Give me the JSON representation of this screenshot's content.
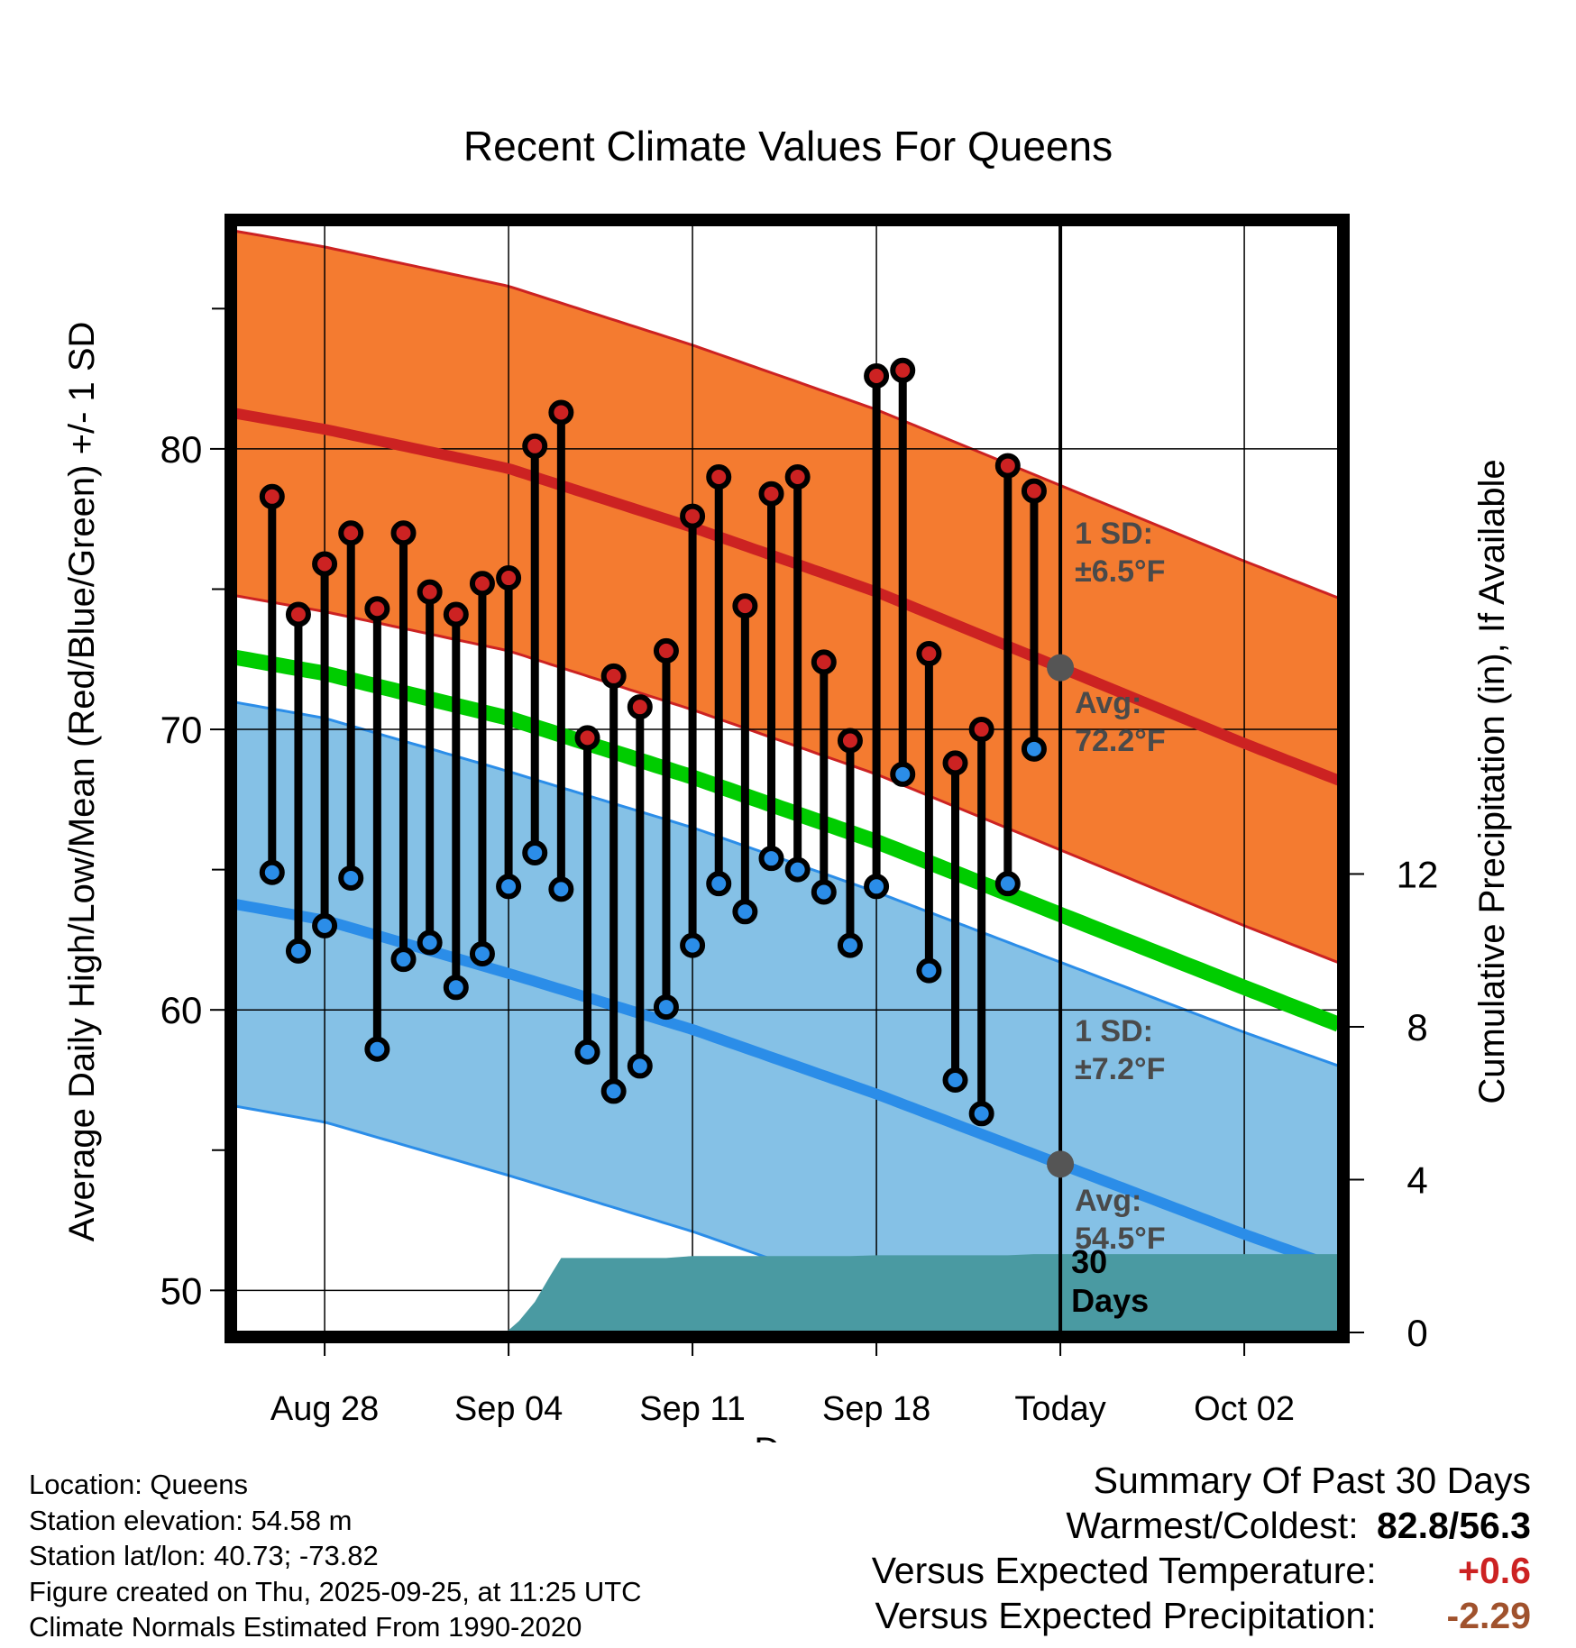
{
  "chart_data": {
    "type": "line",
    "title": "Recent Climate Values For Queens",
    "xlabel": "Day",
    "ylabel": "Average Daily High/Low/Mean (Red/Blue/Green) +/- 1 SD",
    "y2label": "Cumulative Precipitation (in), If Available",
    "x_range": [
      -3.4,
      38.6
    ],
    "ylim": [
      48.5,
      88.0
    ],
    "y2lim": [
      0,
      29
    ],
    "x_ticks": [
      {
        "x": 0,
        "label": "Aug 28"
      },
      {
        "x": 7,
        "label": "Sep 04"
      },
      {
        "x": 14,
        "label": "Sep 11"
      },
      {
        "x": 21,
        "label": "Sep 18"
      },
      {
        "x": 28,
        "label": "Today"
      },
      {
        "x": 35,
        "label": "Oct 02"
      }
    ],
    "y_ticks": [
      50,
      60,
      70,
      80
    ],
    "y_minor_ticks": [
      55,
      65,
      75,
      85
    ],
    "y2_ticks": [
      0,
      4,
      8,
      12
    ],
    "today_x": 28,
    "normals": {
      "x": [
        -3,
        0,
        7,
        14,
        21,
        28,
        35,
        38
      ],
      "high_mean": [
        81.2,
        80.7,
        79.3,
        77.2,
        74.9,
        72.2,
        69.5,
        68.4
      ],
      "high_sd": 6.5,
      "low_mean": [
        63.7,
        63.2,
        61.3,
        59.3,
        57.0,
        54.5,
        52.0,
        51.0
      ],
      "low_sd": 7.2,
      "mean": [
        72.5,
        72.0,
        70.4,
        68.3,
        66.0,
        63.4,
        60.8,
        59.7
      ]
    },
    "series": [
      {
        "name": "Daily High",
        "color": "#cc2222",
        "x": [
          -2,
          -1,
          0,
          1,
          2,
          3,
          4,
          5,
          6,
          7,
          8,
          9,
          10,
          11,
          12,
          13,
          14,
          15,
          16,
          17,
          18,
          19,
          20,
          21,
          22,
          23,
          24,
          25,
          26,
          27
        ],
        "values": [
          78.3,
          74.1,
          75.9,
          77.0,
          74.3,
          77.0,
          74.9,
          74.1,
          75.2,
          75.4,
          80.1,
          81.3,
          69.7,
          71.9,
          70.8,
          72.8,
          77.6,
          79.0,
          74.4,
          78.4,
          79.0,
          72.4,
          69.6,
          82.6,
          82.8,
          72.7,
          68.8,
          70.0,
          79.4,
          78.5
        ]
      },
      {
        "name": "Daily Low",
        "color": "#2b8de8",
        "x": [
          -2,
          -1,
          0,
          1,
          2,
          3,
          4,
          5,
          6,
          7,
          8,
          9,
          10,
          11,
          12,
          13,
          14,
          15,
          16,
          17,
          18,
          19,
          20,
          21,
          22,
          23,
          24,
          25,
          26,
          27
        ],
        "values": [
          64.9,
          62.1,
          63.0,
          64.7,
          58.6,
          61.8,
          62.4,
          60.8,
          62.0,
          64.4,
          65.6,
          64.3,
          58.5,
          57.1,
          58.0,
          60.1,
          62.3,
          64.5,
          63.5,
          65.4,
          65.0,
          64.2,
          62.3,
          64.4,
          68.4,
          61.4,
          57.5,
          56.3,
          64.5,
          69.3
        ]
      }
    ],
    "precip_cumulative": {
      "x": [
        6.9,
        7.4,
        8.0,
        8.6,
        9.0,
        10.0,
        13.0,
        14.0,
        20.0,
        21.0,
        26.0,
        27.0,
        38.6
      ],
      "values": [
        0.0,
        0.3,
        0.8,
        1.5,
        1.95,
        1.95,
        1.95,
        2.0,
        2.0,
        2.02,
        2.02,
        2.05,
        2.05
      ]
    },
    "annotations": {
      "high_sd": "1 SD:",
      "high_sd_value": "±6.5°F",
      "high_avg": "Avg:",
      "high_avg_value": "72.2°F",
      "low_sd": "1 SD:",
      "low_sd_value": "±7.2°F",
      "low_avg": "Avg:",
      "low_avg_value": "54.5°F",
      "days_line1": "30",
      "days_line2": "Days"
    },
    "colors": {
      "high_band": "#f47b30",
      "high_line": "#cc2222",
      "low_band": "#85c1e6",
      "low_line": "#2b8de8",
      "mean_line": "#00cc00",
      "precip": "#4a9aa2",
      "annotation": "#4a4a4a"
    }
  },
  "footer": {
    "location": "Location: Queens",
    "elevation": "Station elevation: 54.58 m",
    "latlon": "Station lat/lon: 40.73; -73.82",
    "created": "Figure created on Thu, 2025-09-25, at 11:25 UTC",
    "normals": "Climate Normals Estimated From 1990-2020"
  },
  "summary": {
    "title": "Summary Of Past 30 Days",
    "warm_cold_label": "Warmest/Coldest:",
    "warmest": "82.8",
    "coldest": "56.3",
    "temp_label": "Versus Expected Temperature:",
    "temp_value": "+0.6",
    "temp_color": "#cc2222",
    "precip_label": "Versus Expected Precipitation:",
    "precip_value": "-2.29",
    "precip_color": "#a0522d"
  }
}
